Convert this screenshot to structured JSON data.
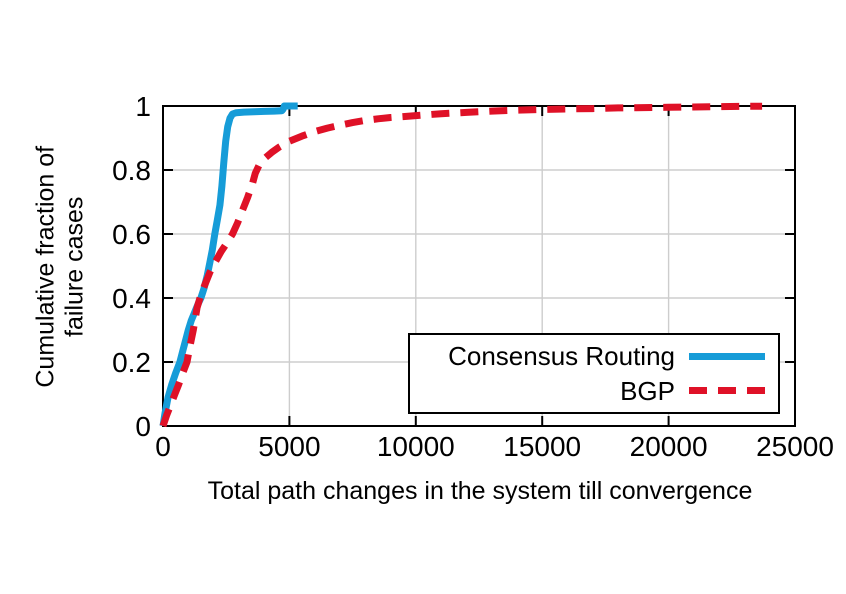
{
  "figure_title": "",
  "colors": {
    "consensus_routing": "#169cd8",
    "bgp": "#df1127",
    "grid": "#cdcdcd",
    "axis": "#000000",
    "background": "#ffffff"
  },
  "chart_data": {
    "type": "line",
    "title": "",
    "xlabel": "Total path changes in the system till convergence",
    "ylabel": "Cumulative fraction of failure cases",
    "ylabel_lines": [
      "Cumulative fraction of",
      "failure cases"
    ],
    "xlim": [
      0,
      25000
    ],
    "ylim": [
      0,
      1
    ],
    "xticks": [
      0,
      5000,
      10000,
      15000,
      20000,
      25000
    ],
    "xtick_labels": [
      "0",
      "5000",
      "10000",
      "15000",
      "20000",
      "25000"
    ],
    "yticks": [
      0,
      0.2,
      0.4,
      0.6,
      0.8,
      1
    ],
    "ytick_labels": [
      "0",
      "0.2",
      "0.4",
      "0.6",
      "0.8",
      "1"
    ],
    "grid": true,
    "legend_position": "center-right",
    "series": [
      {
        "name": "Consensus Routing",
        "color": "#169cd8",
        "style": "solid",
        "points": [
          [
            0,
            0
          ],
          [
            80,
            0.04
          ],
          [
            200,
            0.09
          ],
          [
            350,
            0.13
          ],
          [
            500,
            0.165
          ],
          [
            670,
            0.2
          ],
          [
            800,
            0.24
          ],
          [
            900,
            0.27
          ],
          [
            1000,
            0.3
          ],
          [
            1120,
            0.33
          ],
          [
            1250,
            0.355
          ],
          [
            1380,
            0.38
          ],
          [
            1500,
            0.4
          ],
          [
            1620,
            0.43
          ],
          [
            1750,
            0.47
          ],
          [
            1850,
            0.51
          ],
          [
            1950,
            0.55
          ],
          [
            2050,
            0.6
          ],
          [
            2150,
            0.645
          ],
          [
            2250,
            0.69
          ],
          [
            2330,
            0.75
          ],
          [
            2400,
            0.82
          ],
          [
            2480,
            0.89
          ],
          [
            2560,
            0.935
          ],
          [
            2650,
            0.962
          ],
          [
            2750,
            0.975
          ],
          [
            2900,
            0.979
          ],
          [
            3200,
            0.981
          ],
          [
            3600,
            0.982
          ],
          [
            4000,
            0.983
          ],
          [
            4400,
            0.984
          ],
          [
            4700,
            0.985
          ],
          [
            4750,
            0.99
          ],
          [
            4800,
            1.0
          ],
          [
            5330,
            1.0
          ]
        ]
      },
      {
        "name": "BGP",
        "color": "#df1127",
        "style": "dashed",
        "points": [
          [
            0,
            0
          ],
          [
            150,
            0.035
          ],
          [
            300,
            0.065
          ],
          [
            470,
            0.1
          ],
          [
            620,
            0.13
          ],
          [
            780,
            0.165
          ],
          [
            950,
            0.2
          ],
          [
            1070,
            0.25
          ],
          [
            1200,
            0.3
          ],
          [
            1350,
            0.37
          ],
          [
            1500,
            0.41
          ],
          [
            1650,
            0.44
          ],
          [
            1850,
            0.48
          ],
          [
            2050,
            0.51
          ],
          [
            2300,
            0.545
          ],
          [
            2550,
            0.575
          ],
          [
            2750,
            0.6
          ],
          [
            2950,
            0.635
          ],
          [
            3150,
            0.675
          ],
          [
            3350,
            0.715
          ],
          [
            3550,
            0.76
          ],
          [
            3650,
            0.79
          ],
          [
            3800,
            0.815
          ],
          [
            4000,
            0.835
          ],
          [
            4300,
            0.855
          ],
          [
            4600,
            0.872
          ],
          [
            5000,
            0.89
          ],
          [
            5500,
            0.906
          ],
          [
            6000,
            0.92
          ],
          [
            6500,
            0.931
          ],
          [
            7000,
            0.94
          ],
          [
            7500,
            0.948
          ],
          [
            8000,
            0.955
          ],
          [
            8500,
            0.96
          ],
          [
            9000,
            0.964
          ],
          [
            9500,
            0.967
          ],
          [
            10000,
            0.97
          ],
          [
            11000,
            0.976
          ],
          [
            12000,
            0.98
          ],
          [
            13000,
            0.984
          ],
          [
            14000,
            0.987
          ],
          [
            15000,
            0.989
          ],
          [
            16000,
            0.991
          ],
          [
            17000,
            0.992
          ],
          [
            18000,
            0.994
          ],
          [
            19000,
            0.995
          ],
          [
            20000,
            0.996
          ],
          [
            21000,
            0.997
          ],
          [
            22000,
            0.998
          ],
          [
            23000,
            0.999
          ],
          [
            23700,
            0.999
          ]
        ]
      }
    ]
  },
  "legend": {
    "items": [
      {
        "label": "Consensus Routing",
        "line": "solid-blue-line"
      },
      {
        "label": "BGP",
        "line": "dashed-red-line"
      }
    ]
  }
}
